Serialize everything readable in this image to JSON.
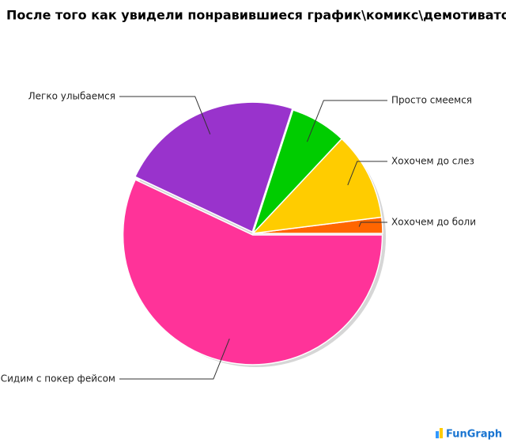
{
  "chart_data": {
    "type": "pie",
    "title": "После того как увидели понравившиеся график\\комикс\\демотиватор",
    "categories": [
      "Хохочем до боли",
      "Хохочем до слез",
      "Просто смеемся",
      "Легко улыбаемся",
      "Сидим с покер фейсом"
    ],
    "values": [
      2,
      11,
      7,
      23,
      57
    ],
    "colors": [
      "#ff6600",
      "#ffcc00",
      "#00cc00",
      "#9933cc",
      "#ff3399"
    ],
    "watermark": "FunGraph"
  }
}
